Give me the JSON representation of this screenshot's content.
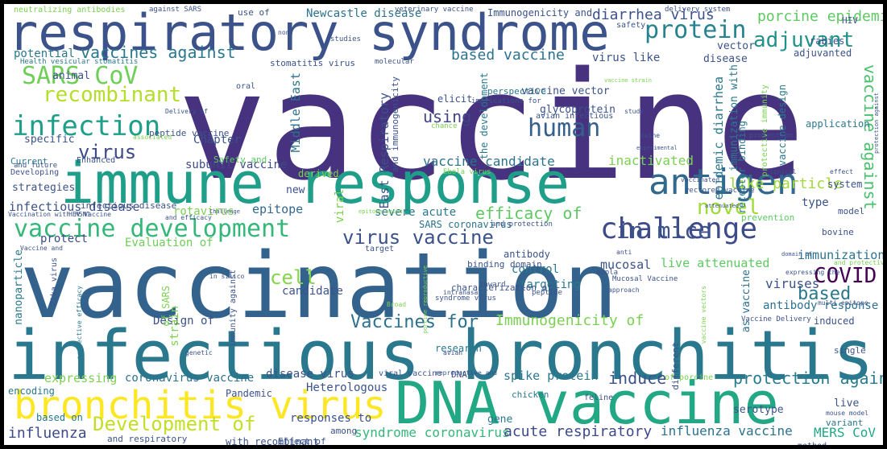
{
  "words": [
    {
      "text": "vaccine",
      "color": "#46327e"
    },
    {
      "text": "vaccination",
      "color": "#33638d"
    },
    {
      "text": "infectious bronchitis",
      "color": "#2a788e"
    },
    {
      "text": "respiratory syndrome",
      "color": "#3b528b"
    },
    {
      "text": "immune response",
      "color": "#1f9e89"
    },
    {
      "text": "DNA vaccine",
      "color": "#22a884"
    },
    {
      "text": "bronchitis virus",
      "color": "#fde725"
    },
    {
      "text": "antigen",
      "color": "#31688e"
    },
    {
      "text": "challenge",
      "color": "#3e4a89"
    },
    {
      "text": "vaccine development",
      "color": "#35b779"
    },
    {
      "text": "in mice",
      "color": "#3b528b"
    },
    {
      "text": "COVID",
      "color": "#440154"
    },
    {
      "text": "protein",
      "color": "#26828e"
    },
    {
      "text": "adjuvant",
      "color": "#21918c"
    },
    {
      "text": "SARS CoV",
      "color": "#6ece58"
    },
    {
      "text": "infection",
      "color": "#1f9e89"
    },
    {
      "text": "recombinant",
      "color": "#b5de2b"
    },
    {
      "text": "human",
      "color": "#355f8d"
    },
    {
      "text": "novel",
      "color": "#a0da39"
    },
    {
      "text": "efficacy of",
      "color": "#5ec962"
    },
    {
      "text": "virus vaccine",
      "color": "#3b528b"
    },
    {
      "text": "Development of",
      "color": "#c2df23"
    },
    {
      "text": "Vaccines for",
      "color": "#2c728e"
    },
    {
      "text": "Immunogenicity of",
      "color": "#7ad151"
    },
    {
      "text": "protection against",
      "color": "#287c8e"
    },
    {
      "text": "virus",
      "color": "#3e4a89"
    },
    {
      "text": "cell",
      "color": "#86d549"
    },
    {
      "text": "based",
      "color": "#2a788e"
    },
    {
      "text": "using",
      "color": "#414487"
    },
    {
      "text": "induce",
      "color": "#3b528b"
    },
    {
      "text": "vaccine against",
      "color": "#4ac16d"
    },
    {
      "text": "based vaccine",
      "color": "#2c728e"
    },
    {
      "text": "vaccines against",
      "color": "#2a788e"
    },
    {
      "text": "porcine epidemic",
      "color": "#5ec962"
    },
    {
      "text": "diarrhea virus",
      "color": "#3b528b"
    },
    {
      "text": "Newcastle disease",
      "color": "#2c728e"
    },
    {
      "text": "Immunogenicity and",
      "color": "#3b528b"
    },
    {
      "text": "potential",
      "color": "#2a788e"
    },
    {
      "text": "like particle",
      "color": "#a0da39"
    },
    {
      "text": "inactivated",
      "color": "#7ad151"
    },
    {
      "text": "vaccine candidate",
      "color": "#2c728e"
    },
    {
      "text": "subunit vaccine",
      "color": "#3e4a89"
    },
    {
      "text": "infectious disease",
      "color": "#3b528b"
    },
    {
      "text": "epitope",
      "color": "#31688e"
    },
    {
      "text": "severe acute",
      "color": "#2a788e"
    },
    {
      "text": "expressing",
      "color": "#7ad151"
    },
    {
      "text": "coronavirus vaccine",
      "color": "#2c728e"
    },
    {
      "text": "disease virus",
      "color": "#3b528b"
    },
    {
      "text": "spike protein",
      "color": "#2a788e"
    },
    {
      "text": "syndrome coronavirus",
      "color": "#35b779"
    },
    {
      "text": "acute respiratory",
      "color": "#3e4a89"
    },
    {
      "text": "influenza vaccine",
      "color": "#2c728e"
    },
    {
      "text": "MERS CoV",
      "color": "#22a884"
    },
    {
      "text": "influenza",
      "color": "#3e4a89"
    },
    {
      "text": "Heterologous",
      "color": "#3b528b"
    },
    {
      "text": "responses to",
      "color": "#3b528b"
    },
    {
      "text": "Evaluation of",
      "color": "#6ece58"
    },
    {
      "text": "Design of",
      "color": "#3b528b"
    },
    {
      "text": "protect",
      "color": "#3e4a89"
    },
    {
      "text": "live attenuated",
      "color": "#5ec962"
    },
    {
      "text": "mucosal",
      "color": "#3b528b"
    },
    {
      "text": "antibody",
      "color": "#3b528b"
    },
    {
      "text": "control",
      "color": "#2a788e"
    },
    {
      "text": "targeting",
      "color": "#2a788e"
    },
    {
      "text": "candidate",
      "color": "#3b528b"
    },
    {
      "text": "viruses",
      "color": "#3b528b"
    },
    {
      "text": "immunization",
      "color": "#2c728e"
    },
    {
      "text": "antibody response",
      "color": "#2c728e"
    },
    {
      "text": "induced",
      "color": "#3b528b"
    },
    {
      "text": "Chapter",
      "color": "#3b528b"
    },
    {
      "text": "specific",
      "color": "#3b528b"
    },
    {
      "text": "animal",
      "color": "#3b528b"
    },
    {
      "text": "glycoprotein",
      "color": "#3b528b"
    },
    {
      "text": "elicit",
      "color": "#3b528b"
    },
    {
      "text": "vaccine vector",
      "color": "#3b528b"
    },
    {
      "text": "virus like",
      "color": "#3b528b"
    },
    {
      "text": "disease",
      "color": "#3b528b"
    },
    {
      "text": "vector",
      "color": "#3b528b"
    },
    {
      "text": "adjuvanted",
      "color": "#3b528b"
    },
    {
      "text": "rabies",
      "color": "#3b528b"
    },
    {
      "text": "HIV",
      "color": "#3b528b"
    },
    {
      "text": "application",
      "color": "#2a788e"
    },
    {
      "text": "system",
      "color": "#3b528b"
    },
    {
      "text": "type",
      "color": "#3b528b"
    },
    {
      "text": "new",
      "color": "#3b528b"
    },
    {
      "text": "rotavirus",
      "color": "#7ad151"
    },
    {
      "text": "SARS coronavirus",
      "color": "#2c728e"
    },
    {
      "text": "binding domain",
      "color": "#3b528b"
    },
    {
      "text": "characterization of",
      "color": "#3b528b"
    },
    {
      "text": "strategies",
      "color": "#3b528b"
    },
    {
      "text": "derived",
      "color": "#7ad151"
    },
    {
      "text": "encoding",
      "color": "#2a788e"
    },
    {
      "text": "DNA",
      "color": "#3b528b"
    },
    {
      "text": "gene",
      "color": "#2a788e"
    },
    {
      "text": "research",
      "color": "#2a788e"
    },
    {
      "text": "Pandemic",
      "color": "#3b528b"
    },
    {
      "text": "chicken",
      "color": "#2a788e"
    },
    {
      "text": "based on",
      "color": "#2a788e"
    },
    {
      "text": "and respiratory",
      "color": "#3b528b"
    },
    {
      "text": "with recombinant",
      "color": "#3b528b"
    },
    {
      "text": "among",
      "color": "#3b528b"
    },
    {
      "text": "serotype",
      "color": "#3b528b"
    },
    {
      "text": "variant",
      "color": "#2a788e"
    },
    {
      "text": "live",
      "color": "#3b528b"
    },
    {
      "text": "bovine",
      "color": "#3b528b"
    },
    {
      "text": "model",
      "color": "#3b528b"
    },
    {
      "text": "single",
      "color": "#3b528b"
    },
    {
      "text": "Effect of",
      "color": "#3b528b"
    },
    {
      "text": "method",
      "color": "#3b528b"
    },
    {
      "text": "Middle East",
      "color": "#2c728e"
    },
    {
      "text": "East Respiratory",
      "color": "#3b528b"
    },
    {
      "text": "epidemic diarrhea",
      "color": "#2a788e"
    },
    {
      "text": "immunization with",
      "color": "#2a788e"
    },
    {
      "text": "the development",
      "color": "#2a788e"
    },
    {
      "text": "and immunogenicity",
      "color": "#3b528b"
    },
    {
      "text": "receptor binding",
      "color": "#2a788e"
    },
    {
      "text": "protective immunity",
      "color": "#7ad151"
    },
    {
      "text": "vaccine design",
      "color": "#2a788e"
    },
    {
      "text": "viral",
      "color": "#7ad151"
    },
    {
      "text": "nanoparticle",
      "color": "#2a788e"
    },
    {
      "text": "strain",
      "color": "#7ad151"
    },
    {
      "text": "of SARS",
      "color": "#7ad151"
    },
    {
      "text": "as vaccine",
      "color": "#2c728e"
    },
    {
      "text": "Zika virus",
      "color": "#3b528b"
    },
    {
      "text": "immunity against",
      "color": "#3b528b"
    },
    {
      "text": "different",
      "color": "#3b528b"
    },
    {
      "text": "prevention",
      "color": "#5ec962"
    },
    {
      "text": "infectious disease",
      "color": "#3b528b"
    },
    {
      "text": "neutralizing antibodies",
      "color": "#7ad151"
    },
    {
      "text": "against SARS",
      "color": "#3b528b"
    },
    {
      "text": "use of",
      "color": "#3b528b"
    },
    {
      "text": "veterinary vaccine",
      "color": "#3b528b"
    },
    {
      "text": "delivery system",
      "color": "#3b528b"
    },
    {
      "text": "safety",
      "color": "#3b528b"
    },
    {
      "text": "Health vesicular stomatitis",
      "color": "#2a788e"
    },
    {
      "text": "stomatitis virus",
      "color": "#3b528b"
    },
    {
      "text": "molecular",
      "color": "#3b528b"
    },
    {
      "text": "oral",
      "color": "#3b528b"
    },
    {
      "text": "peptide vaccine",
      "color": "#3b528b"
    },
    {
      "text": "Delivery of",
      "color": "#3b528b"
    },
    {
      "text": "perspective",
      "color": "#2a788e"
    },
    {
      "text": "implications for",
      "color": "#3b528b"
    },
    {
      "text": "avian infectious",
      "color": "#3b528b"
    },
    {
      "text": "protection",
      "color": "#3b528b"
    },
    {
      "text": "Safety and",
      "color": "#5ec962"
    },
    {
      "text": "Ebola virus",
      "color": "#7ad151"
    },
    {
      "text": "Current",
      "color": "#2a788e"
    },
    {
      "text": "Enhanced",
      "color": "#3b528b"
    },
    {
      "text": "Developing",
      "color": "#3b528b"
    },
    {
      "text": "and protection",
      "color": "#3b528b"
    },
    {
      "text": "toward",
      "color": "#3b528b"
    },
    {
      "text": "peptide",
      "color": "#3b528b"
    },
    {
      "text": "Mucosal Vaccine",
      "color": "#3b528b"
    },
    {
      "text": "multi epitope",
      "color": "#3b528b"
    },
    {
      "text": "Vaccine Delivery",
      "color": "#3b528b"
    },
    {
      "text": "reproductive and",
      "color": "#3b528b"
    },
    {
      "text": "viral vaccine",
      "color": "#3b528b"
    },
    {
      "text": "of porcine",
      "color": "#7ad151"
    },
    {
      "text": "mouse model",
      "color": "#3b528b"
    },
    {
      "text": "feline",
      "color": "#3b528b"
    },
    {
      "text": "in silico",
      "color": "#3b528b"
    },
    {
      "text": "and efficacy",
      "color": "#3b528b"
    },
    {
      "text": "ebola",
      "color": "#3b528b"
    },
    {
      "text": "anti",
      "color": "#3b528b"
    },
    {
      "text": "clinical",
      "color": "#3b528b"
    },
    {
      "text": "study",
      "color": "#3b528b"
    },
    {
      "text": "swine",
      "color": "#3b528b"
    },
    {
      "text": "vaccinated",
      "color": "#3b528b"
    },
    {
      "text": "vectored vaccine",
      "color": "#3b528b"
    },
    {
      "text": "effect",
      "color": "#3b528b"
    },
    {
      "text": "vaccine strain",
      "color": "#7ad151"
    },
    {
      "text": "experimental",
      "color": "#3b528b"
    },
    {
      "text": "chance",
      "color": "#7ad151"
    },
    {
      "text": "attenuated",
      "color": "#3b528b"
    },
    {
      "text": "target",
      "color": "#3b528b"
    },
    {
      "text": "approach",
      "color": "#3b528b"
    },
    {
      "text": "and protective",
      "color": "#7ad151"
    },
    {
      "text": "expressing the",
      "color": "#3b528b"
    },
    {
      "text": "domain of",
      "color": "#3b528b"
    },
    {
      "text": "associated",
      "color": "#7ad151"
    },
    {
      "text": "Challenge",
      "color": "#3b528b"
    },
    {
      "text": "and future",
      "color": "#3b528b"
    },
    {
      "text": "studies",
      "color": "#3b528b"
    },
    {
      "text": "non",
      "color": "#3b528b"
    },
    {
      "text": "Vaccine and",
      "color": "#3b528b"
    },
    {
      "text": "Vaccination with",
      "color": "#3b528b"
    },
    {
      "text": "H5N1",
      "color": "#3b528b"
    },
    {
      "text": "HEV Vaccine",
      "color": "#3b528b"
    },
    {
      "text": "epitope based",
      "color": "#7ad151"
    },
    {
      "text": "intranasal",
      "color": "#3b528b"
    },
    {
      "text": "syndrome virus",
      "color": "#3b528b"
    },
    {
      "text": "Broad",
      "color": "#7ad151"
    },
    {
      "text": "genetic",
      "color": "#3b528b"
    },
    {
      "text": "avian",
      "color": "#3b528b"
    },
    {
      "text": "porcine reproductive",
      "color": "#7ad151"
    },
    {
      "text": "vaccine vectors",
      "color": "#7ad151"
    },
    {
      "text": "protective efficacy",
      "color": "#2a788e"
    },
    {
      "text": "protection against",
      "color": "#3b528b"
    }
  ]
}
